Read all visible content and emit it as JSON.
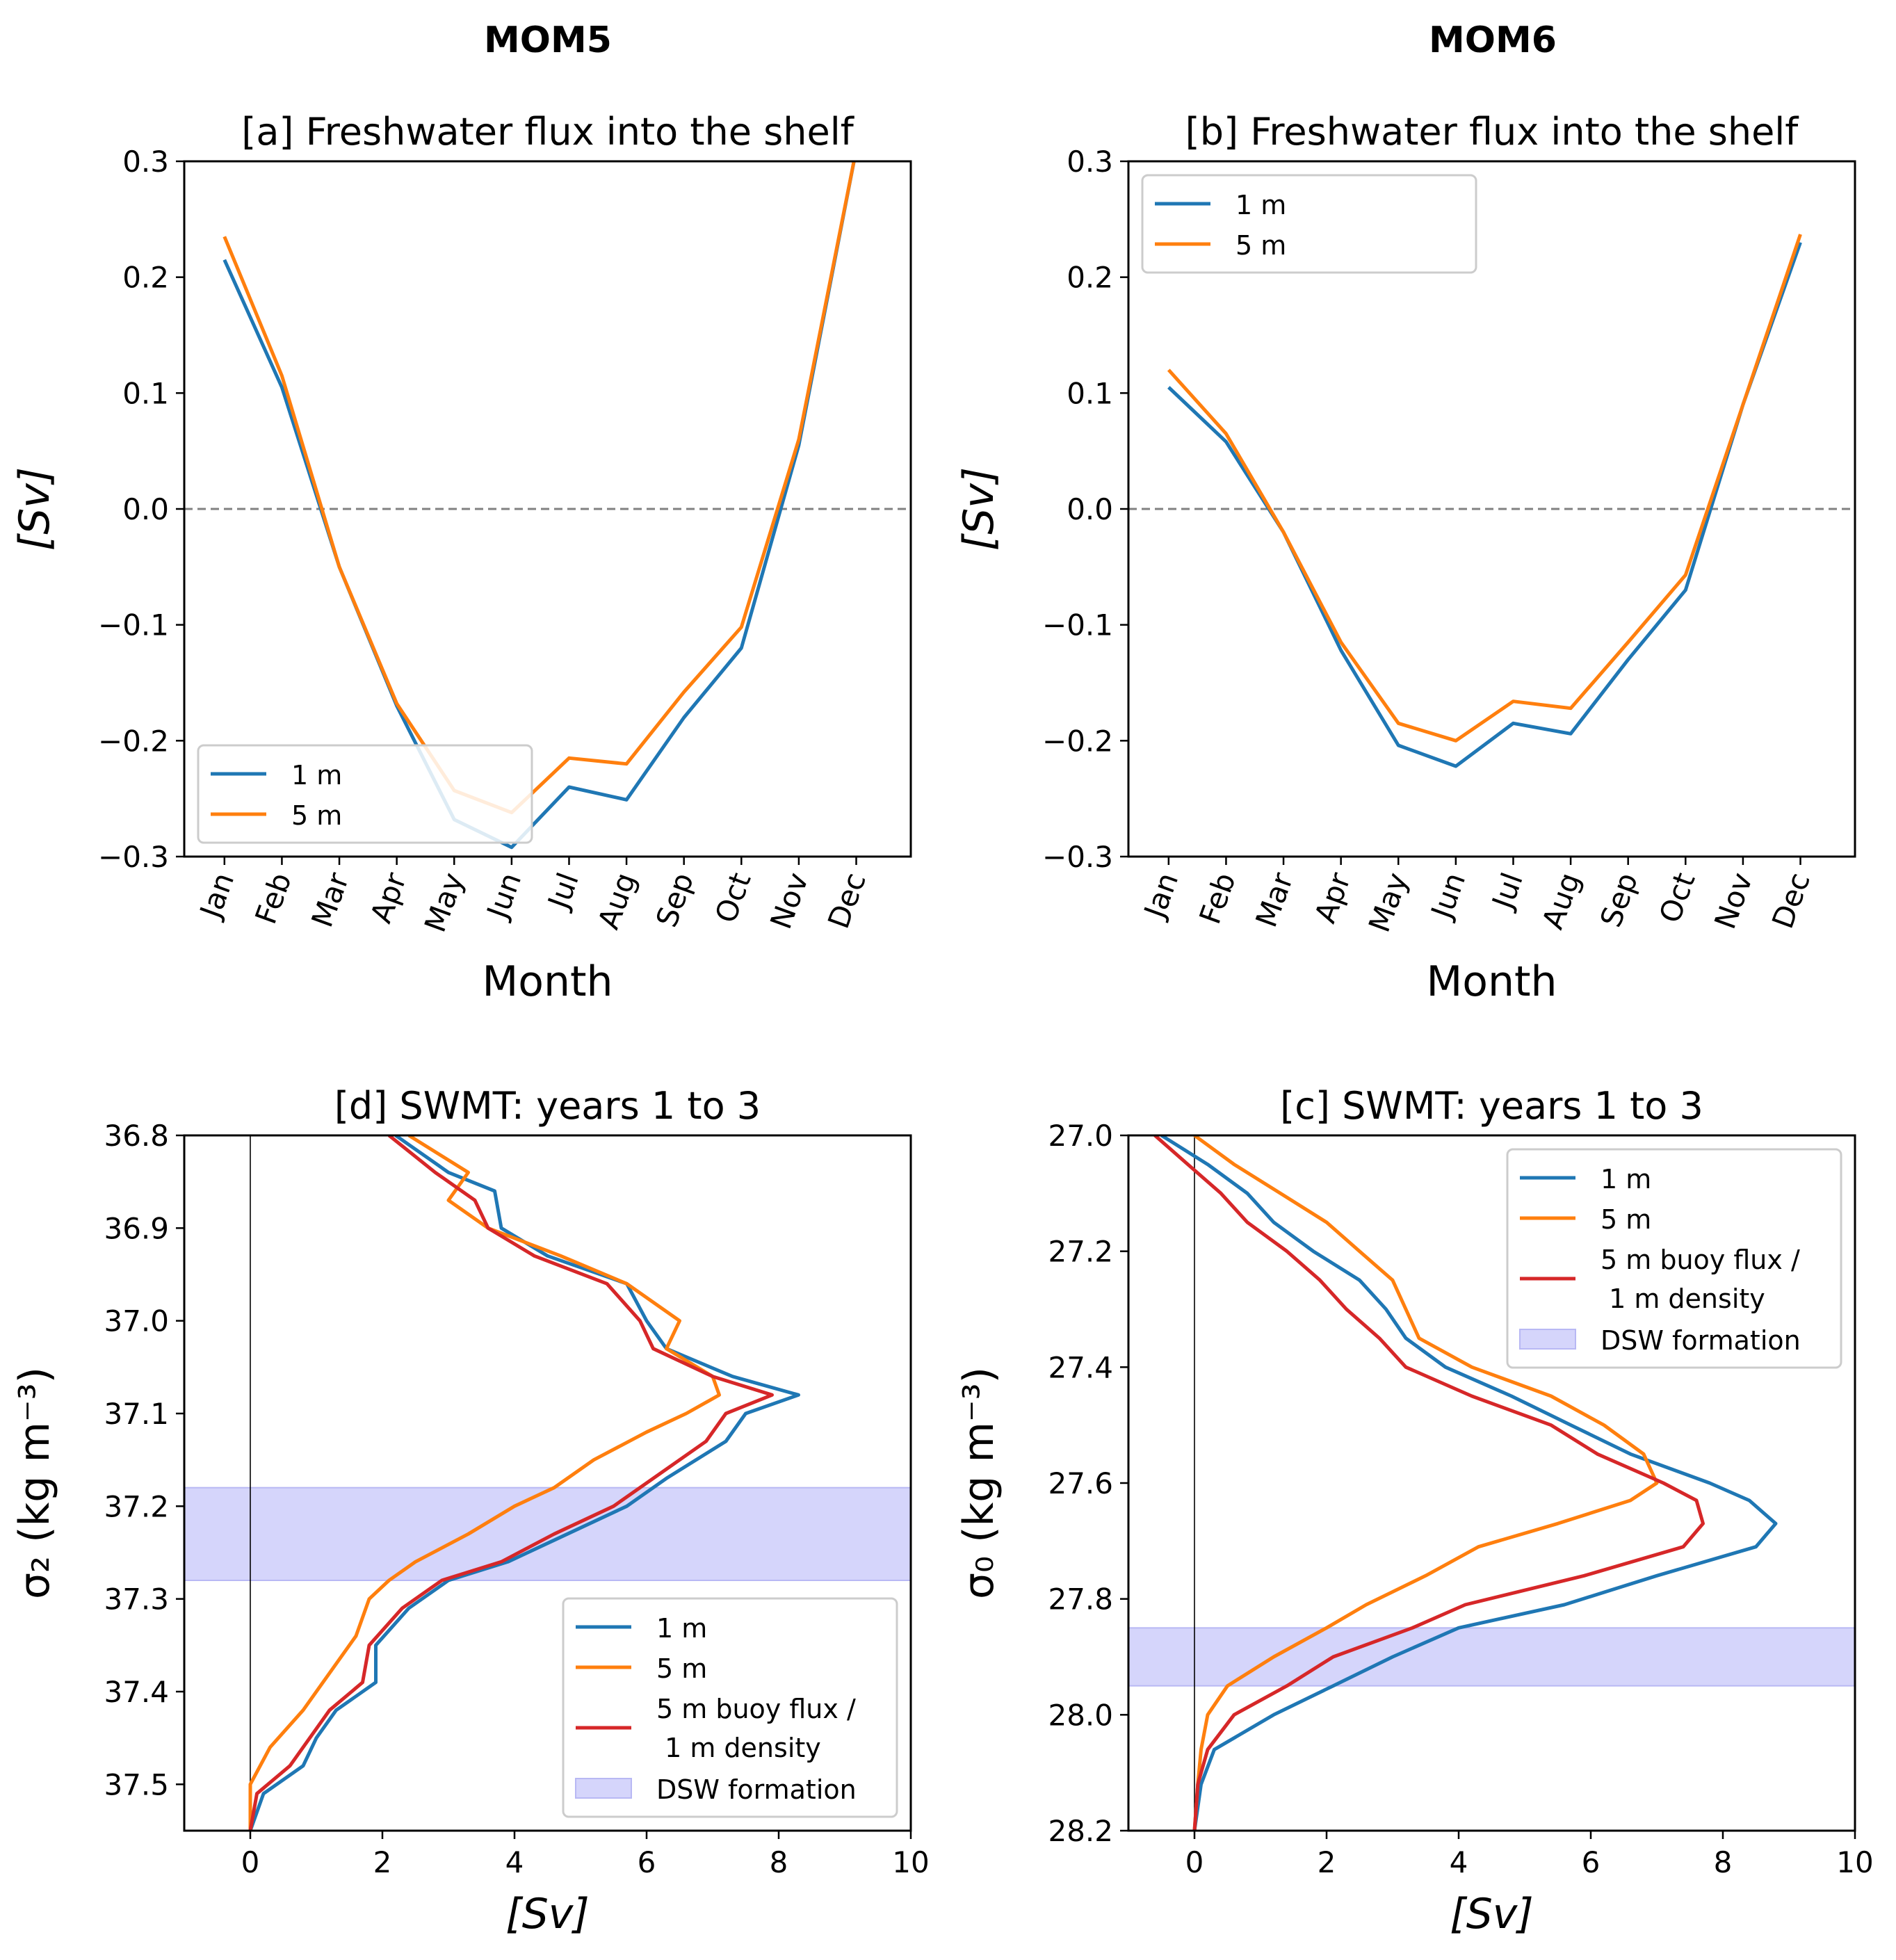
{
  "column_titles": [
    "MOM5",
    "MOM6"
  ],
  "colors": {
    "blue": "#1f77b4",
    "orange": "#ff7f0e",
    "red": "#d62728",
    "dsw_fill": "#d5d5fb",
    "zero_line": "#808080"
  },
  "chart_data": [
    {
      "type": "line",
      "title": "[a] Freshwater flux into the shelf",
      "xlabel": "Month",
      "ylabel": "[Sv]",
      "categories": [
        "Jan",
        "Feb",
        "Mar",
        "Apr",
        "May",
        "Jun",
        "Jul",
        "Aug",
        "Sep",
        "Oct",
        "Nov",
        "Dec"
      ],
      "ylim": [
        -0.3,
        0.3
      ],
      "yticks": [
        0.3,
        0.2,
        0.1,
        0.0,
        -0.1,
        -0.2,
        -0.3
      ],
      "ytick_labels": [
        "0.3",
        "0.2",
        "0.1",
        "0.0",
        "−0.1",
        "−0.2",
        "−0.3"
      ],
      "zero_line": true,
      "legend": "lower-left",
      "series": [
        {
          "name": "1 m",
          "color": "#1f77b4",
          "values": [
            0.215,
            0.105,
            -0.05,
            -0.17,
            -0.268,
            -0.292,
            -0.24,
            -0.251,
            -0.18,
            -0.12,
            0.055,
            0.31
          ]
        },
        {
          "name": "5 m",
          "color": "#ff7f0e",
          "values": [
            0.235,
            0.115,
            -0.05,
            -0.168,
            -0.243,
            -0.262,
            -0.215,
            -0.22,
            -0.158,
            -0.102,
            0.06,
            0.31
          ]
        }
      ]
    },
    {
      "type": "line",
      "title": "[b] Freshwater flux into the shelf",
      "xlabel": "Month",
      "ylabel": "[Sv]",
      "categories": [
        "Jan",
        "Feb",
        "Mar",
        "Apr",
        "May",
        "Jun",
        "Jul",
        "Aug",
        "Sep",
        "Oct",
        "Nov",
        "Dec"
      ],
      "ylim": [
        -0.3,
        0.3
      ],
      "yticks": [
        0.3,
        0.2,
        0.1,
        0.0,
        -0.1,
        -0.2,
        -0.3
      ],
      "ytick_labels": [
        "0.3",
        "0.2",
        "0.1",
        "0.0",
        "−0.1",
        "−0.2",
        "−0.3"
      ],
      "zero_line": true,
      "legend": "upper-left",
      "series": [
        {
          "name": "1 m",
          "color": "#1f77b4",
          "values": [
            0.105,
            0.058,
            -0.02,
            -0.122,
            -0.204,
            -0.222,
            -0.185,
            -0.194,
            -0.13,
            -0.07,
            0.09,
            0.23
          ]
        },
        {
          "name": "5 m",
          "color": "#ff7f0e",
          "values": [
            0.12,
            0.065,
            -0.02,
            -0.115,
            -0.185,
            -0.2,
            -0.166,
            -0.172,
            -0.115,
            -0.057,
            0.09,
            0.237
          ]
        }
      ]
    },
    {
      "type": "line",
      "title": "[d] SWMT: years 1 to 3",
      "xlabel": "[Sv]",
      "ylabel": "σ₂ (kg m⁻³)",
      "xlim": [
        -1,
        10
      ],
      "xticks": [
        0,
        2,
        4,
        6,
        8,
        10
      ],
      "ylim": [
        37.55,
        36.8
      ],
      "yticks": [
        36.8,
        36.9,
        37.0,
        37.1,
        37.2,
        37.3,
        37.4,
        37.5
      ],
      "ytick_labels": [
        "36.8",
        "36.9",
        "37.0",
        "37.1",
        "37.2",
        "37.3",
        "37.4",
        "37.5"
      ],
      "zero_vline": true,
      "dsw_band": [
        37.18,
        37.28
      ],
      "legend": "lower-right",
      "series": [
        {
          "name": "1 m",
          "color": "#1f77b4",
          "y": [
            36.8,
            36.84,
            36.86,
            36.9,
            36.93,
            36.96,
            37.0,
            37.03,
            37.06,
            37.08,
            37.1,
            37.13,
            37.17,
            37.2,
            37.23,
            37.26,
            37.28,
            37.31,
            37.35,
            37.39,
            37.42,
            37.45,
            37.48,
            37.51,
            37.55
          ],
          "x": [
            2.2,
            3.0,
            3.7,
            3.8,
            4.5,
            5.7,
            6.0,
            6.3,
            7.3,
            8.3,
            7.5,
            7.2,
            6.3,
            5.7,
            4.8,
            3.9,
            3.0,
            2.4,
            1.9,
            1.9,
            1.3,
            1.0,
            0.8,
            0.2,
            0.0
          ]
        },
        {
          "name": "5 m",
          "color": "#ff7f0e",
          "y": [
            36.8,
            36.84,
            36.87,
            36.9,
            36.93,
            36.96,
            37.0,
            37.03,
            37.06,
            37.08,
            37.1,
            37.12,
            37.15,
            37.18,
            37.2,
            37.23,
            37.26,
            37.28,
            37.3,
            37.34,
            37.38,
            37.42,
            37.46,
            37.5,
            37.55
          ],
          "x": [
            2.4,
            3.3,
            3.0,
            3.6,
            4.7,
            5.7,
            6.5,
            6.3,
            7.0,
            7.1,
            6.6,
            6.0,
            5.2,
            4.6,
            4.0,
            3.3,
            2.5,
            2.1,
            1.8,
            1.6,
            1.2,
            0.8,
            0.3,
            0.0,
            0.0
          ]
        },
        {
          "name": "5 m buoy flux /\n 1 m density",
          "color": "#d62728",
          "y": [
            36.8,
            36.84,
            36.87,
            36.9,
            36.93,
            36.96,
            37.0,
            37.03,
            37.06,
            37.08,
            37.1,
            37.13,
            37.17,
            37.2,
            37.23,
            37.26,
            37.28,
            37.31,
            37.35,
            37.39,
            37.42,
            37.45,
            37.48,
            37.51,
            37.55
          ],
          "x": [
            2.1,
            2.8,
            3.4,
            3.6,
            4.3,
            5.4,
            5.9,
            6.1,
            7.0,
            7.9,
            7.2,
            6.9,
            6.1,
            5.5,
            4.6,
            3.8,
            2.9,
            2.3,
            1.8,
            1.7,
            1.2,
            0.9,
            0.6,
            0.1,
            0.0
          ]
        }
      ],
      "band_label": "DSW formation"
    },
    {
      "type": "line",
      "title": "[c] SWMT: years 1 to 3",
      "xlabel": "[Sv]",
      "ylabel": "σ₀ (kg m⁻³)",
      "xlim": [
        -1,
        10
      ],
      "xticks": [
        0,
        2,
        4,
        6,
        8,
        10
      ],
      "ylim": [
        28.2,
        27.0
      ],
      "yticks": [
        27.0,
        27.2,
        27.4,
        27.6,
        27.8,
        28.0,
        28.2
      ],
      "ytick_labels": [
        "27.0",
        "27.2",
        "27.4",
        "27.6",
        "27.8",
        "28.0",
        "28.2"
      ],
      "zero_vline": true,
      "dsw_band": [
        27.85,
        27.95
      ],
      "legend": "upper-right",
      "series": [
        {
          "name": "1 m",
          "color": "#1f77b4",
          "y": [
            27.0,
            27.05,
            27.1,
            27.15,
            27.2,
            27.25,
            27.3,
            27.35,
            27.4,
            27.45,
            27.5,
            27.55,
            27.6,
            27.63,
            27.67,
            27.71,
            27.76,
            27.81,
            27.85,
            27.9,
            27.95,
            28.0,
            28.06,
            28.12,
            28.2
          ],
          "x": [
            -0.5,
            0.2,
            0.8,
            1.2,
            1.8,
            2.5,
            2.9,
            3.2,
            3.8,
            4.8,
            5.7,
            6.6,
            7.8,
            8.4,
            8.8,
            8.5,
            7.0,
            5.6,
            4.0,
            3.0,
            2.1,
            1.2,
            0.3,
            0.1,
            0.0
          ]
        },
        {
          "name": "5 m",
          "color": "#ff7f0e",
          "y": [
            27.0,
            27.05,
            27.1,
            27.15,
            27.2,
            27.25,
            27.3,
            27.35,
            27.4,
            27.45,
            27.5,
            27.55,
            27.6,
            27.63,
            27.67,
            27.71,
            27.76,
            27.81,
            27.85,
            27.9,
            27.95,
            28.0,
            28.06,
            28.12,
            28.2
          ],
          "x": [
            0.0,
            0.6,
            1.3,
            2.0,
            2.5,
            3.0,
            3.2,
            3.4,
            4.2,
            5.4,
            6.2,
            6.8,
            7.0,
            6.6,
            5.5,
            4.3,
            3.5,
            2.6,
            2.0,
            1.2,
            0.5,
            0.2,
            0.1,
            0.05,
            0.0
          ]
        },
        {
          "name": "5 m buoy flux /\n 1 m density",
          "color": "#d62728",
          "y": [
            27.0,
            27.05,
            27.1,
            27.15,
            27.2,
            27.25,
            27.3,
            27.35,
            27.4,
            27.45,
            27.5,
            27.55,
            27.6,
            27.63,
            27.67,
            27.71,
            27.76,
            27.81,
            27.85,
            27.9,
            27.95,
            28.0,
            28.06,
            28.12,
            28.2
          ],
          "x": [
            -0.6,
            -0.1,
            0.4,
            0.8,
            1.4,
            1.9,
            2.3,
            2.8,
            3.2,
            4.2,
            5.4,
            6.1,
            7.1,
            7.6,
            7.7,
            7.4,
            5.9,
            4.1,
            3.3,
            2.1,
            1.4,
            0.6,
            0.2,
            0.05,
            0.0
          ]
        }
      ],
      "band_label": "DSW formation"
    }
  ]
}
